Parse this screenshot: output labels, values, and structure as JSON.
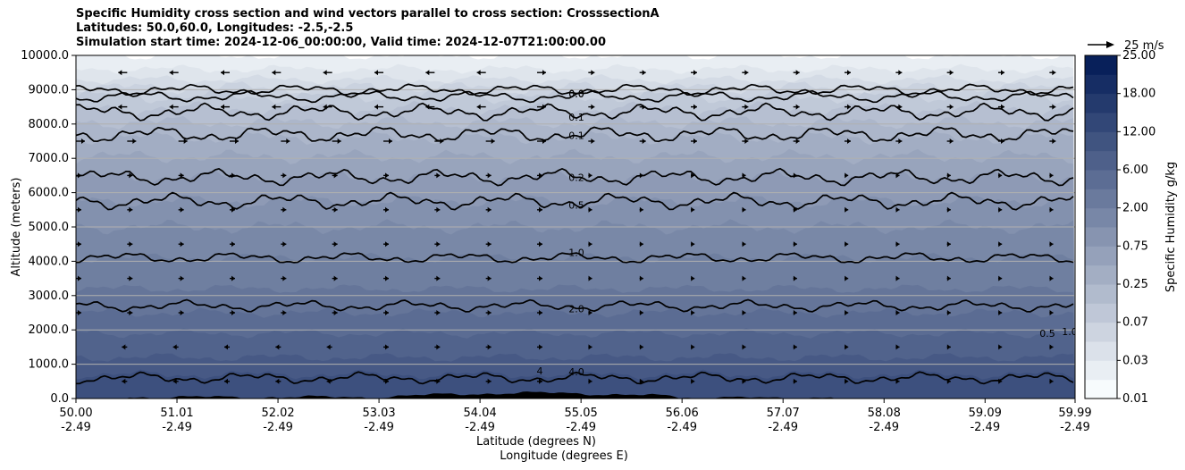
{
  "chart_data": {
    "type": "contour",
    "title": "Specific Humidity cross section and wind vectors parallel to cross section: CrosssectionA",
    "subtitle_lines": [
      "Latitudes: 50.0,60.0, Longitudes: -2.5,-2.5",
      "Simulation start time: 2024-12-06_00:00:00, Valid time: 2024-12-07T21:00:00.00"
    ],
    "ylabel": "Altitude (meters)",
    "xlabel_lines": [
      "Latitude (degrees N)",
      "Longitude (degrees E)"
    ],
    "ylim": [
      0,
      10000
    ],
    "xlim": [
      50.0,
      59.99
    ],
    "y_ticks": [
      {
        "value": 0,
        "label": "0.0"
      },
      {
        "value": 1000,
        "label": "1000.0"
      },
      {
        "value": 2000,
        "label": "2000.0"
      },
      {
        "value": 3000,
        "label": "3000.0"
      },
      {
        "value": 4000,
        "label": "4000.0"
      },
      {
        "value": 5000,
        "label": "5000.0"
      },
      {
        "value": 6000,
        "label": "6000.0"
      },
      {
        "value": 7000,
        "label": "7000.0"
      },
      {
        "value": 8000,
        "label": "8000.0"
      },
      {
        "value": 9000,
        "label": "9000.0"
      },
      {
        "value": 10000,
        "label": "10000.0"
      }
    ],
    "x_ticks": [
      {
        "value": 50.0,
        "lat": "50.00",
        "lon": "-2.49"
      },
      {
        "value": 51.01,
        "lat": "51.01",
        "lon": "-2.49"
      },
      {
        "value": 52.02,
        "lat": "52.02",
        "lon": "-2.49"
      },
      {
        "value": 53.03,
        "lat": "53.03",
        "lon": "-2.49"
      },
      {
        "value": 54.04,
        "lat": "54.04",
        "lon": "-2.49"
      },
      {
        "value": 55.05,
        "lat": "55.05",
        "lon": "-2.49"
      },
      {
        "value": 56.06,
        "lat": "56.06",
        "lon": "-2.49"
      },
      {
        "value": 57.07,
        "lat": "57.07",
        "lon": "-2.49"
      },
      {
        "value": 58.08,
        "lat": "58.08",
        "lon": "-2.49"
      },
      {
        "value": 59.09,
        "lat": "59.09",
        "lon": "-2.49"
      },
      {
        "value": 59.99,
        "lat": "59.99",
        "lon": "-2.49"
      }
    ],
    "grid": "horizontal",
    "colorbar": {
      "label": "Specific Humidity g/kg",
      "tick_labels": [
        "0.01",
        "0.03",
        "0.07",
        "0.25",
        "0.75",
        "2.00",
        "6.00",
        "12.00",
        "18.00",
        "25.00"
      ],
      "level_count": 18,
      "color_low": "#f7fbfd",
      "color_high": "#08205a"
    },
    "quiver_key": {
      "label": "25 m/s",
      "speed": 25
    },
    "contour_lines": [
      {
        "label": "0.0",
        "base_altitude": 9000
      },
      {
        "label": "0.0",
        "base_altitude": 8800
      },
      {
        "label": "0.1",
        "base_altitude": 8350
      },
      {
        "label": "0.1",
        "base_altitude": 7700
      },
      {
        "label": "0.2",
        "base_altitude": 6450
      },
      {
        "label": "0.5",
        "base_altitude": 5750
      },
      {
        "label": "1.0",
        "base_altitude": 4100
      },
      {
        "label": "2.0",
        "base_altitude": 2700
      },
      {
        "label": "4.0",
        "base_altitude": 600
      }
    ],
    "extra_contour_labels": [
      "0.5",
      "1.0",
      "4"
    ]
  }
}
